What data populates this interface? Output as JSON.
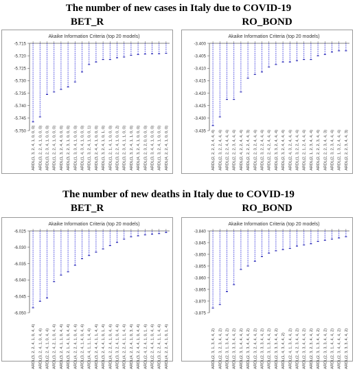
{
  "titles": {
    "cases": "The number of new cases in Italy due to COVID-19",
    "deaths": "The number of new deaths in Italy due to COVID-19"
  },
  "colors": {
    "stem": "#3b3bdc",
    "marker": "#1f1fb0",
    "axis": "#555555",
    "text": "#333333"
  },
  "chart_data": [
    {
      "type": "line",
      "label": "BET_R",
      "title": "Akaike Information Criteria (top 20 models)",
      "ylim": [
        -5.75,
        -5.715
      ],
      "yticks": [
        -5.715,
        -5.72,
        -5.725,
        -5.73,
        -5.735,
        -5.74,
        -5.745,
        -5.75
      ],
      "ytick_labels": [
        "-5.715",
        "-5.720",
        "-5.725",
        "-5.730",
        "-5.735",
        "-5.740",
        "-5.745",
        "-5.750"
      ],
      "categories": [
        "ARDL(1, 3, 2, 4, 1, 0, 0, 0)",
        "ARDL(3, 2, 2, 4, 1, 0, 0, 0)",
        "ARDL(3, 2, 3, 4, 1, 0, 0, 0)",
        "ARDL(1, 2, 2, 4, 1, 0, 0, 0)",
        "ARDL(1, 3, 2, 4, 4, 0, 0, 0)",
        "ARDL(3, 2, 2, 3, 1, 0, 0, 0)",
        "ARDL(1, 3, 3, 4, 1, 0, 0, 0)",
        "ARDL(1, 4, 3, 4, 1, 0, 0, 0)",
        "ARDL(1, 3, 2, 4, 1, 0, 0, 1)",
        "ARDL(3, 2, 4, 4, 1, 0, 0, 0)",
        "ARDL(1, 3, 2, 4, 1, 0, 1, 0)",
        "ARDL(1, 2, 1, 4, 1, 0, 0, 0)",
        "ARDL(3, 2, 2, 4, 1, 0, 0, 2)",
        "ARDL(3, 2, 3, 4, 1, 1, 0, 0)",
        "ARDL(1, 3, 2, 4, 1, 1, 0, 0)",
        "ARDL(4, 3, 2, 4, 1, 0, 0, 0)",
        "ARDL(3, 2, 3, 2, 0, 0, 0, 0)",
        "ARDL(3, 3, 4, 4, 1, 0, 0, 0)",
        "ARDL(1, 3, 2, 4, 1, 0, 0, 0)",
        "ARDL(4, 2, 2, 4, 1, 0, 0, 0)"
      ],
      "values": [
        -5.7465,
        -5.7445,
        -5.7355,
        -5.7345,
        -5.7335,
        -5.7325,
        -5.7305,
        -5.7265,
        -5.7235,
        -5.7225,
        -5.7215,
        -5.7215,
        -5.7208,
        -5.7205,
        -5.7198,
        -5.7195,
        -5.7193,
        -5.7192,
        -5.7192,
        -5.719
      ]
    },
    {
      "type": "line",
      "label": "RO_BOND",
      "title": "Akaike Information Criteria (top 20 models)",
      "ylim": [
        -3.435,
        -3.4
      ],
      "yticks": [
        -3.4,
        -3.405,
        -3.41,
        -3.415,
        -3.42,
        -3.425,
        -3.43,
        -3.435
      ],
      "ytick_labels": [
        "-3.400",
        "-3.405",
        "-3.410",
        "-3.415",
        "-3.420",
        "-3.425",
        "-3.430",
        "-3.435"
      ],
      "categories": [
        "ARDL(2, 2, 2, 2, 4, 4, 4)",
        "ARDL(2, 3, 2, 2, 4, 4, 4)",
        "ARDL(2, 2, 2, 4, 4, 4, 4)",
        "ARDL(2, 2, 2, 3, 4, 4, 4)",
        "ARDL(2, 4, 2, 2, 4, 4, 4)",
        "ARDL(2, 2, 2, 2, 4, 4, 3)",
        "ARDL(2, 2, 3, 2, 4, 4, 4)",
        "ARDL(2, 3, 2, 2, 4, 4, 4)",
        "ARDL(2, 2, 4, 2, 4, 4, 4)",
        "ARDL(2, 3, 3, 2, 4, 4, 4)",
        "ARDL(2, 3, 2, 4, 4, 4, 4)",
        "ARDL(2, 4, 3, 2, 4, 4, 4)",
        "ARDL(1, 3, 2, 2, 4, 4, 4)",
        "ARDL(2, 2, 1, 2, 4, 4, 4)",
        "ARDL(2, 1, 2, 3, 4, 4, 4)",
        "ARDL(2, 2, 2, 2, 3, 4, 4)",
        "ARDL(2, 2, 2, 3, 4, 4, 3)",
        "ARDL(2, 3, 2, 3, 4, 4, 4)",
        "ARDL(2, 1, 3, 2, 4, 4, 4)",
        "ARDL(2, 2, 2, 3, 4, 4, 3)"
      ],
      "values": [
        -3.433,
        -3.4295,
        -3.4225,
        -3.4225,
        -3.4195,
        -3.414,
        -3.4125,
        -3.4115,
        -3.4095,
        -3.4085,
        -3.4075,
        -3.4075,
        -3.407,
        -3.4065,
        -3.4065,
        -3.405,
        -3.4045,
        -3.4035,
        -3.403,
        -3.403
      ]
    },
    {
      "type": "line",
      "label": "BET_R",
      "title": "Akaike Information Criteria (top 20 models)",
      "ylim": [
        -6.05,
        -6.025
      ],
      "yticks": [
        -6.025,
        -6.03,
        -6.035,
        -6.04,
        -6.045,
        -6.05
      ],
      "ytick_labels": [
        "-6.025",
        "-6.030",
        "-6.035",
        "-6.040",
        "-6.045",
        "-6.050"
      ],
      "categories": [
        "ARDL(3, 2, 2, 4, 1, 0, 4, 4)",
        "ARDL(3, 2, 4, 1, 0, 4, 4)",
        "ARDL(2, 2, 4, 1, 0, 4, 4)",
        "ARDL(3, 2, 4, 2, 1, 0, 4, 4)",
        "ARDL(3, 2, 4, 1, 1, 0, 4, 4)",
        "ARDL(3, 2, 1, 4, 1, 0, 4, 4)",
        "ARDL(4, 2, 2, 4, 1, 0, 4, 4)",
        "ARDL(3, 2, 4, 1, 4, 0, 4, 4)",
        "ARDL(4, 4, 1, 1, 1, 4, 4)",
        "ARDL(3, 2, 4, 4, 1, 1, 4, 4)",
        "ARDL(3, 2, 4, 4, 1, 0, 1, 4)",
        "ARDL(4, 2, 2, 4, 1, 0, 4, 4)",
        "ARDL(3, 3, 2, 4, 1, 0, 4, 4)",
        "ARDL(4, 2, 2, 4, 1, 1, 4, 4)",
        "ARDL(4, 2, 2, 4, 1, 0, 3, 4)",
        "ARDL(3, 2, 4, 4, 1, 0, 4, 4)",
        "ARDL(2, 4, 2, 4, 1, 0, 1, 4)",
        "ARDL(2, 2, 4, 4, 1, 0, 4, 4)",
        "ARDL(3, 2, 2, 4, 1, 1, 4, 4)",
        "ARDL(4, 2, 2, 4, 1, 0, 1, 4)"
      ],
      "values": [
        -6.0485,
        -6.0465,
        -6.0455,
        -6.0405,
        -6.0385,
        -6.0375,
        -6.0355,
        -6.0335,
        -6.0325,
        -6.0315,
        -6.0305,
        -6.0295,
        -6.0285,
        -6.0275,
        -6.0268,
        -6.0265,
        -6.0262,
        -6.026,
        -6.0258,
        -6.0255
      ]
    },
    {
      "type": "line",
      "label": "RO_BOND",
      "title": "Akaike Information Criteria (top 20 models)",
      "ylim": [
        -3.875,
        -3.84
      ],
      "yticks": [
        -3.84,
        -3.845,
        -3.85,
        -3.855,
        -3.86,
        -3.865,
        -3.87,
        -3.875
      ],
      "ytick_labels": [
        "-3.840",
        "-3.845",
        "-3.850",
        "-3.855",
        "-3.860",
        "-3.865",
        "-3.870",
        "-3.875"
      ],
      "categories": [
        "ARDL(2, 3, 1, 3, 4, 4, 2)",
        "ARDL(2, 3, 2, 3, 4, 4, 2)",
        "ARDL(2, 3, 1, 3, 4, 4, 2)",
        "ARDL(2, 3, 3, 3, 4, 4, 2)",
        "ARDL(2, 3, 1, 4, 4, 4, 2)",
        "ARDL(2, 3, 3, 4, 4, 4, 2)",
        "ARDL(2, 3, 2, 4, 4, 4, 2)",
        "ARDL(2, 3, 3, 3, 4, 4, 2)",
        "ARDL(2, 3, 1, 3, 4, 4, 2)",
        "ARDL(2, 3, 3, 3, 4, 4, 2)",
        "ARDL(1, 4, 3, 4, 4, 2)",
        "ARDL(2, 4, 1, 3, 4, 4, 2)",
        "ARDL(2, 4, 2, 3, 4, 4, 2)",
        "ARDL(2, 3, 3, 4, 4, 4, 2)",
        "ARDL(2, 3, 2, 3, 4, 4, 2)",
        "ARDL(2, 3, 1, 3, 4, 4, 2)",
        "ARDL(2, 3, 3, 3, 4, 4, 2)",
        "ARDL(2, 3, 1, 4, 4, 4, 2)",
        "ARDL(2, 3, 4, 4, 4, 4, 2)",
        "ARDL(2, 3, 3, 3, 4, 4, 2)"
      ],
      "values": [
        -3.873,
        -3.8715,
        -3.866,
        -3.863,
        -3.8565,
        -3.855,
        -3.853,
        -3.851,
        -3.8495,
        -3.8485,
        -3.848,
        -3.8475,
        -3.8465,
        -3.846,
        -3.8455,
        -3.8445,
        -3.844,
        -3.8435,
        -3.843,
        -3.8425
      ]
    }
  ]
}
